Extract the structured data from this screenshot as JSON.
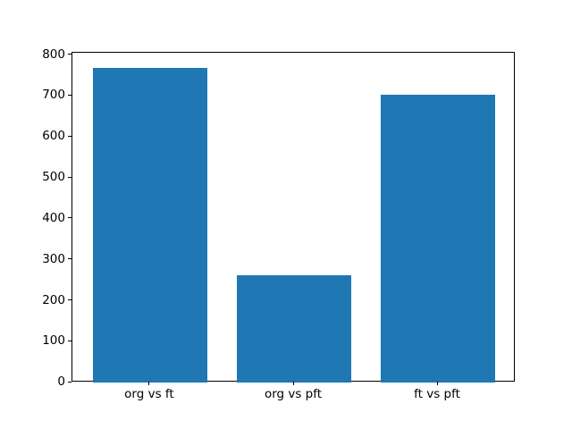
{
  "chart_data": {
    "type": "bar",
    "title": "",
    "xlabel": "",
    "ylabel": "",
    "categories": [
      "org vs ft",
      "org vs pft",
      "ft vs pft"
    ],
    "values": [
      768,
      262,
      704
    ],
    "yticks": [
      0,
      100,
      200,
      300,
      400,
      500,
      600,
      700,
      800
    ],
    "ylim": [
      0,
      806.4
    ],
    "xlim": [
      -0.54,
      2.54
    ],
    "bar_width": 0.8,
    "bar_color": "#1f77b4",
    "axis_color": "#000000",
    "background_color": "#ffffff",
    "grid": false,
    "legend": "none"
  }
}
